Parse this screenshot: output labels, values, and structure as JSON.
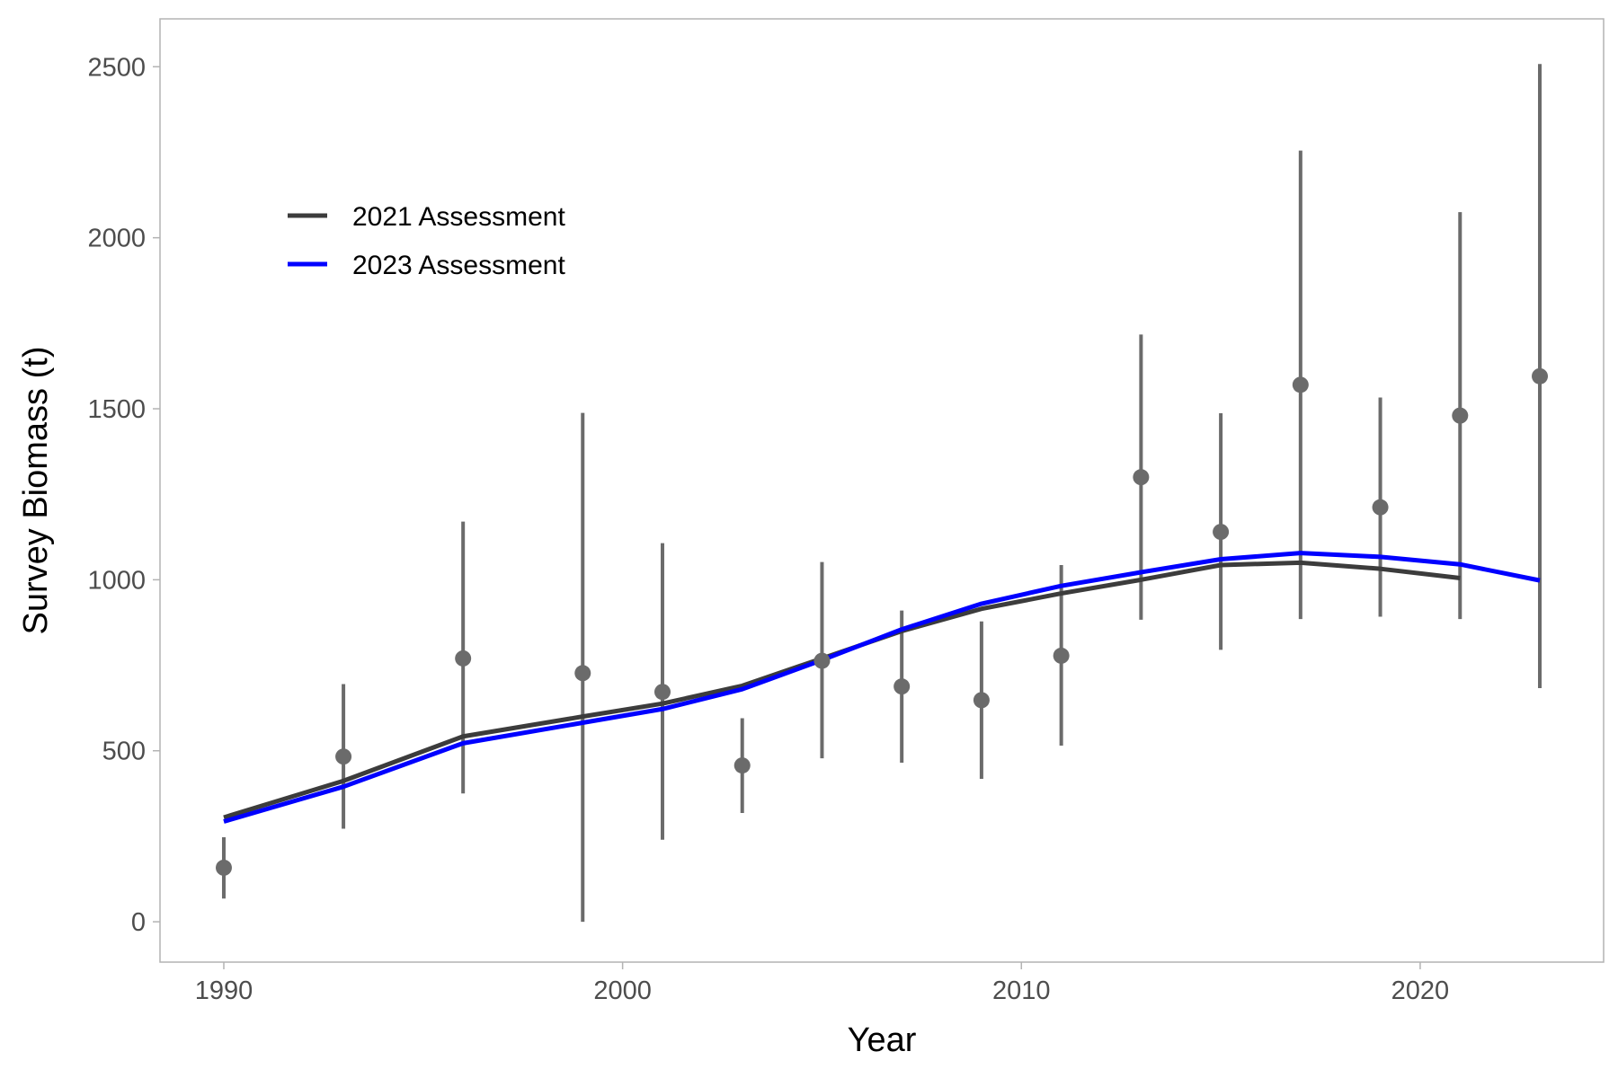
{
  "chart_data": {
    "type": "line",
    "title": "",
    "xlabel": "Year",
    "ylabel": "Survey Biomass (t)",
    "xlim": [
      1988.4,
      2024.6
    ],
    "ylim": [
      -118,
      2640
    ],
    "x_ticks": [
      1990,
      2000,
      2010,
      2020
    ],
    "y_ticks": [
      0,
      500,
      1000,
      1500,
      2000,
      2500
    ],
    "grid": false,
    "legend_position": "top-left",
    "series": [
      {
        "name": "2021 Assessment",
        "color": "#3c3c3c",
        "x": [
          1990,
          1993,
          1996,
          1999,
          2001,
          2003,
          2005,
          2007,
          2009,
          2011,
          2013,
          2015,
          2017,
          2019,
          2021
        ],
        "y": [
          305,
          412,
          542,
          600,
          638,
          690,
          770,
          850,
          915,
          960,
          1000,
          1043,
          1050,
          1032,
          1005
        ]
      },
      {
        "name": "2023 Assessment",
        "color": "#0000ff",
        "x": [
          1990,
          1993,
          1996,
          1999,
          2001,
          2003,
          2005,
          2007,
          2009,
          2011,
          2013,
          2015,
          2017,
          2019,
          2021,
          2023
        ],
        "y": [
          293,
          395,
          522,
          582,
          622,
          680,
          765,
          855,
          930,
          982,
          1022,
          1060,
          1078,
          1067,
          1045,
          998
        ]
      }
    ],
    "observations": {
      "color": "#6b6b6b",
      "points": [
        {
          "x": 1990,
          "y": 158,
          "lower": 68,
          "upper": 247
        },
        {
          "x": 1993,
          "y": 483,
          "lower": 272,
          "upper": 695
        },
        {
          "x": 1996,
          "y": 770,
          "lower": 375,
          "upper": 1170
        },
        {
          "x": 1999,
          "y": 727,
          "lower": 0,
          "upper": 1488
        },
        {
          "x": 2001,
          "y": 672,
          "lower": 240,
          "upper": 1107
        },
        {
          "x": 2003,
          "y": 457,
          "lower": 318,
          "upper": 595
        },
        {
          "x": 2005,
          "y": 763,
          "lower": 478,
          "upper": 1052
        },
        {
          "x": 2007,
          "y": 688,
          "lower": 465,
          "upper": 910
        },
        {
          "x": 2009,
          "y": 648,
          "lower": 418,
          "upper": 878
        },
        {
          "x": 2011,
          "y": 778,
          "lower": 515,
          "upper": 1043
        },
        {
          "x": 2013,
          "y": 1300,
          "lower": 883,
          "upper": 1717
        },
        {
          "x": 2015,
          "y": 1140,
          "lower": 795,
          "upper": 1487
        },
        {
          "x": 2017,
          "y": 1570,
          "lower": 885,
          "upper": 2255
        },
        {
          "x": 2019,
          "y": 1212,
          "lower": 892,
          "upper": 1533
        },
        {
          "x": 2021,
          "y": 1480,
          "lower": 885,
          "upper": 2075
        },
        {
          "x": 2023,
          "y": 1595,
          "lower": 683,
          "upper": 2508
        }
      ]
    }
  }
}
